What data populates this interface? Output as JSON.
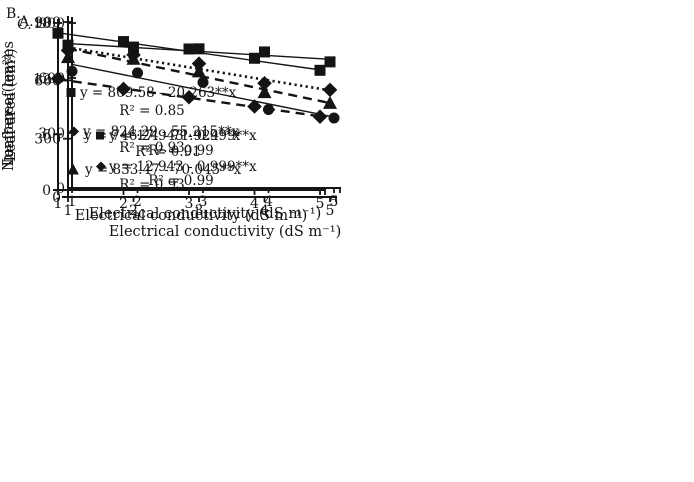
{
  "figure": {
    "background": "#ffffff",
    "ink_color": "#141414"
  },
  "chart_data": [
    {
      "panel": "A",
      "panel_label": "A.",
      "type": "scatter",
      "xlabel": "Electrical conductivity (dS m⁻¹)",
      "ylabel": "Number of leaves",
      "x": [
        1,
        2,
        3,
        4,
        5
      ],
      "xticks": [
        1,
        2,
        3,
        4,
        5
      ],
      "yticks": [
        0,
        6,
        12,
        18
      ],
      "xlim": [
        1,
        5
      ],
      "ylim": [
        0,
        18
      ],
      "grid": false,
      "legend_position": "inside-bottom-center",
      "series": [
        {
          "name": "squares",
          "marker": "square",
          "line": "solid",
          "values": [
            16.9,
            16.0,
            15.2,
            14.2,
            12.9
          ],
          "trend_intercept": 17.943,
          "trend_slope": -0.999,
          "equation_label": "y = 17.943 - 0.999**x",
          "r2_label": "R² = 0.99"
        },
        {
          "name": "diamonds",
          "marker": "diamond",
          "line": "dashed",
          "values": [
            12.0,
            10.9,
            10.0,
            9.0,
            7.9
          ],
          "trend_intercept": 12.943,
          "trend_slope": -0.999,
          "equation_label": "y = 12.943 - 0.999**x",
          "r2_label": "R² = 0.99"
        }
      ]
    },
    {
      "panel": "B",
      "panel_label": "B.",
      "type": "scatter",
      "xlabel": "Electrical conductivity (dS m⁻¹)",
      "ylabel": "Leaf area (cm²)",
      "x": [
        1,
        2,
        3,
        4,
        5
      ],
      "xticks": [
        1,
        2,
        3,
        4,
        5
      ],
      "yticks": [
        0,
        300,
        600,
        900
      ],
      "xlim": [
        1,
        5
      ],
      "ylim": [
        0,
        900
      ],
      "grid": false,
      "legend_position": "inside-bottom-center",
      "series": [
        {
          "name": "circles",
          "marker": "circle",
          "line": "solid",
          "values": [
            637,
            628,
            576,
            428,
            382
          ],
          "trend_intercept": 746.24,
          "trend_slope": -71.924,
          "equation_label": "y = 746.24 - 71.924**x",
          "r2_label": "R² = 0.91"
        }
      ]
    },
    {
      "panel": "C",
      "panel_label": "C.",
      "type": "scatter",
      "xlabel": "Electrical conductivity (dS m⁻¹)",
      "ylabel": "Leaf area (cm²)",
      "x": [
        1,
        2,
        3,
        4,
        5
      ],
      "xticks": [
        1,
        2,
        3,
        4,
        5
      ],
      "yticks": [
        0,
        300,
        600,
        900
      ],
      "xlim": [
        1,
        5
      ],
      "ylim": [
        0,
        900
      ],
      "grid": false,
      "legend_position": "inside-left",
      "series": [
        {
          "name": "squares",
          "marker": "square",
          "line": "solid",
          "values": [
            781,
            771,
            762,
            746,
            695
          ],
          "trend_intercept": 809.58,
          "trend_slope": -20.263,
          "equation_label": "y = 809.58 - 20.263**x",
          "r2_label": "R² = 0.85"
        },
        {
          "name": "diamonds",
          "marker": "diamond",
          "line": "dotted",
          "values": [
            754,
            731,
            686,
            585,
            551
          ],
          "trend_intercept": 824.29,
          "trend_slope": -55.215,
          "equation_label": "y = 824.29 - 55.215**x",
          "r2_label": "R² = 0.93"
        },
        {
          "name": "triangles",
          "marker": "triangle",
          "line": "dashed",
          "values": [
            719,
            711,
            646,
            539,
            484
          ],
          "trend_intercept": 833.47,
          "trend_slope": -70.045,
          "equation_label": "y = 833.47 - 70.045**x",
          "r2_label": "R² = 0.93"
        }
      ]
    }
  ]
}
